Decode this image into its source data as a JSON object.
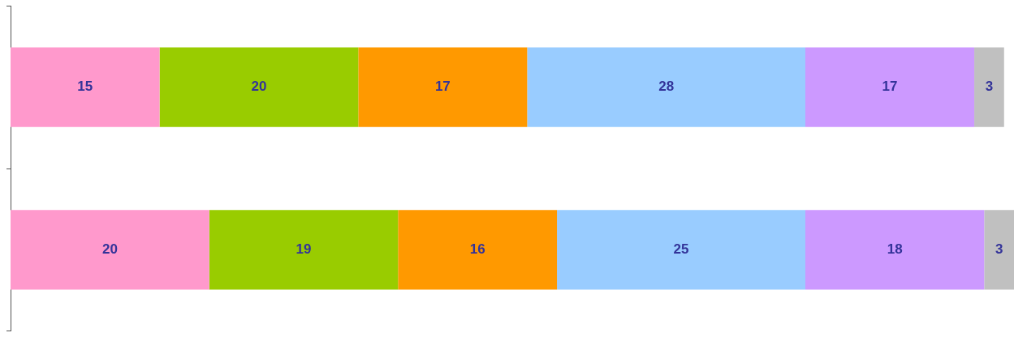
{
  "chart_data": {
    "type": "bar",
    "orientation": "horizontal",
    "stacked": true,
    "categories": [
      null,
      null
    ],
    "series": [
      {
        "color": "#ff99cc",
        "values": [
          15,
          20
        ]
      },
      {
        "color": "#99cc00",
        "values": [
          20,
          19
        ]
      },
      {
        "color": "#ff9900",
        "values": [
          17,
          16
        ]
      },
      {
        "color": "#99ccff",
        "values": [
          28,
          25
        ]
      },
      {
        "color": "#cc99ff",
        "values": [
          17,
          18
        ]
      },
      {
        "color": "#c0c0c0",
        "values": [
          3,
          3
        ]
      }
    ],
    "data_labels": true,
    "grid": false,
    "legend": false
  }
}
